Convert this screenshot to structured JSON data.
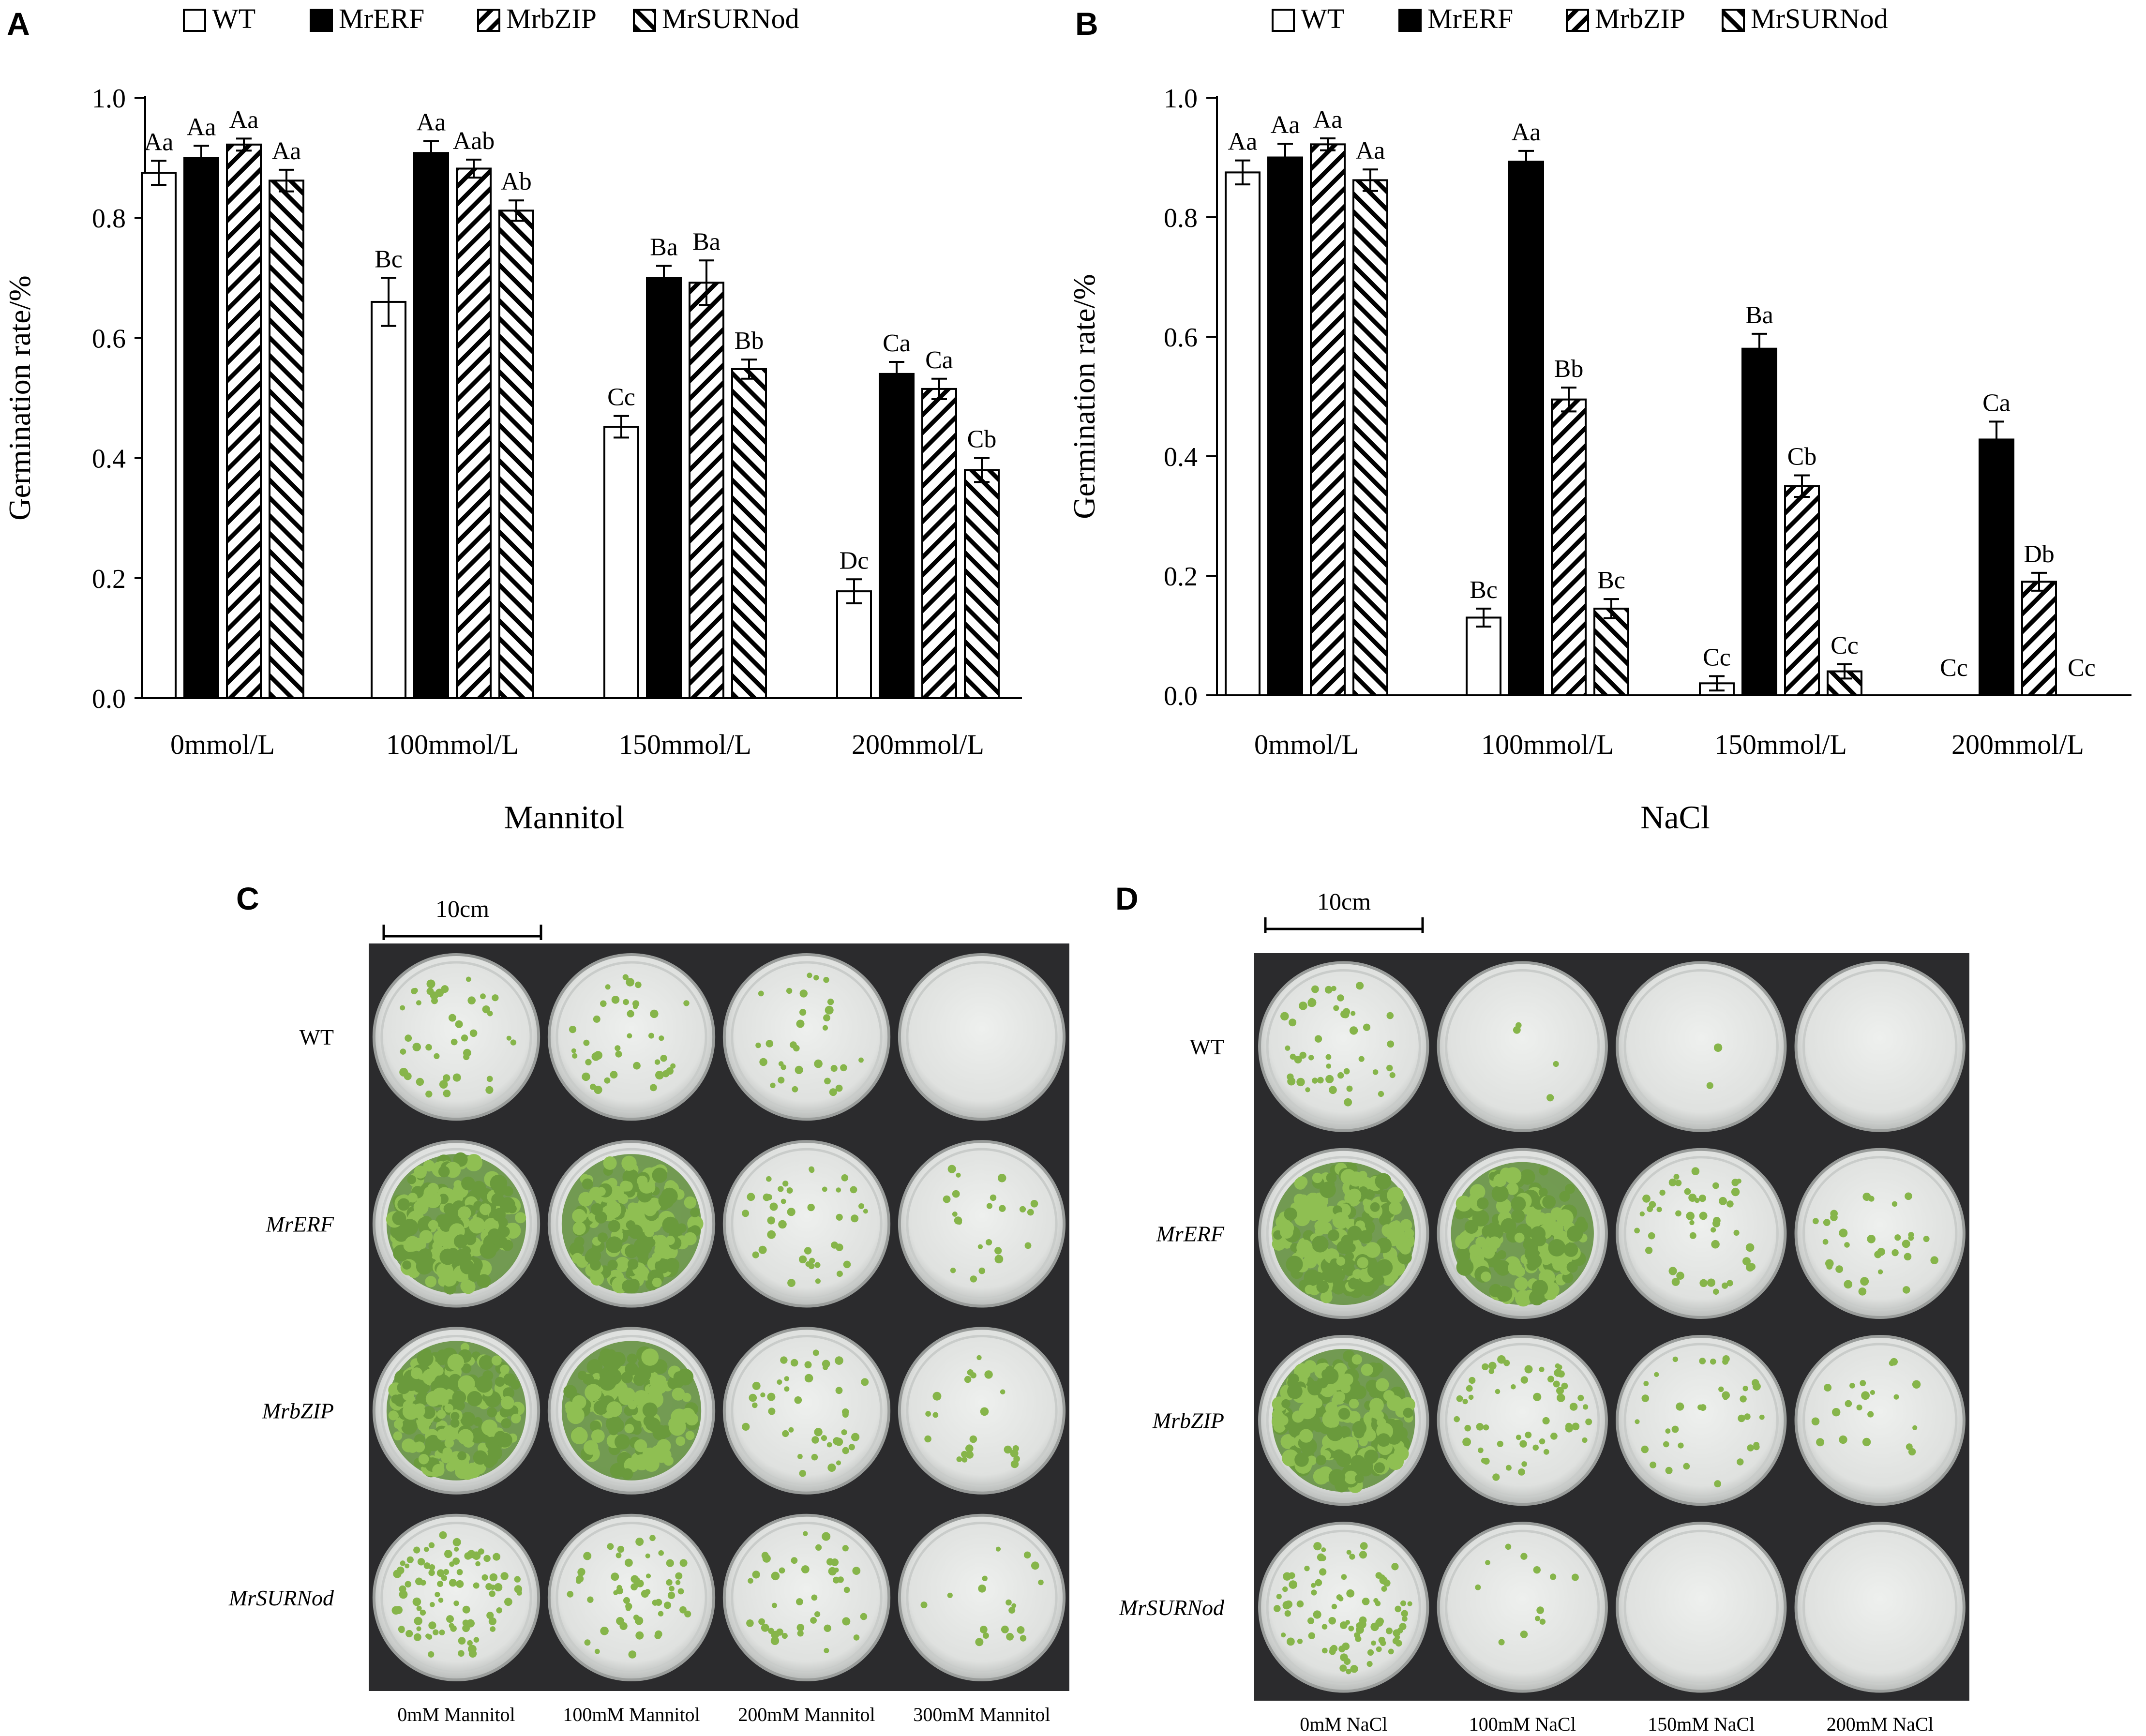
{
  "panels": {
    "A": "A",
    "B": "B",
    "C": "C",
    "D": "D"
  },
  "legend": [
    "WT",
    "MrERF",
    "MrbZIP",
    "MrSURNod"
  ],
  "colors": {
    "bar_edge": "#000000",
    "wt_fill": "#ffffff",
    "erf_fill": "#000000",
    "hatch": "#000000",
    "photo_bg": "#2b2b2d",
    "dish_fill": "#e6e7e5",
    "seedling_green": "#86b54a",
    "dense_green": "#5e8d38"
  },
  "chart_data": [
    {
      "type": "bar",
      "panel": "A",
      "title": "",
      "xlabel": "Mannitol",
      "ylabel": "Germination rate/%",
      "ylim": [
        0,
        1.0
      ],
      "yticks": [
        "0.0",
        "0.2",
        "0.4",
        "0.6",
        "0.8",
        "1.0"
      ],
      "categories": [
        "0mmol/L",
        "100mmol/L",
        "150mmol/L",
        "200mmol/L"
      ],
      "legend_position": "top",
      "grid": false,
      "series": [
        {
          "name": "WT",
          "values": [
            0.875,
            0.66,
            0.452,
            0.178
          ],
          "errors": [
            0.02,
            0.04,
            0.018,
            0.02
          ],
          "labels": [
            "Aa",
            "Bc",
            "Cc",
            "Dc"
          ]
        },
        {
          "name": "MrERF",
          "values": [
            0.9,
            0.908,
            0.7,
            0.54
          ],
          "errors": [
            0.02,
            0.02,
            0.02,
            0.02
          ],
          "labels": [
            "Aa",
            "Aa",
            "Ba",
            "Ca"
          ]
        },
        {
          "name": "MrbZIP",
          "values": [
            0.922,
            0.882,
            0.692,
            0.515
          ],
          "errors": [
            0.01,
            0.015,
            0.037,
            0.017
          ],
          "labels": [
            "Aa",
            "Aab",
            "Ba",
            "Ca"
          ]
        },
        {
          "name": "MrSURNod",
          "values": [
            0.862,
            0.812,
            0.548,
            0.38
          ],
          "errors": [
            0.018,
            0.017,
            0.016,
            0.02
          ],
          "labels": [
            "Aa",
            "Ab",
            "Bb",
            "Cb"
          ]
        }
      ]
    },
    {
      "type": "bar",
      "panel": "B",
      "title": "",
      "xlabel": "NaCl",
      "ylabel": "Germination rate/%",
      "ylim": [
        0,
        1.0
      ],
      "yticks": [
        "0.0",
        "0.2",
        "0.4",
        "0.6",
        "0.8",
        "1.0"
      ],
      "categories": [
        "0mmol/L",
        "100mmol/L",
        "150mmol/L",
        "200mmol/L"
      ],
      "legend_position": "top",
      "grid": false,
      "series": [
        {
          "name": "WT",
          "values": [
            0.875,
            0.13,
            0.02,
            0.0
          ],
          "errors": [
            0.02,
            0.015,
            0.012,
            0
          ],
          "labels": [
            "Aa",
            "Bc",
            "Cc",
            "Cc"
          ]
        },
        {
          "name": "MrERF",
          "values": [
            0.9,
            0.893,
            0.58,
            0.428
          ],
          "errors": [
            0.023,
            0.018,
            0.025,
            0.03
          ],
          "labels": [
            "Aa",
            "Aa",
            "Ba",
            "Ca"
          ]
        },
        {
          "name": "MrbZIP",
          "values": [
            0.922,
            0.495,
            0.35,
            0.19
          ],
          "errors": [
            0.01,
            0.02,
            0.018,
            0.015
          ],
          "labels": [
            "Aa",
            "Bb",
            "Cb",
            "Db"
          ]
        },
        {
          "name": "MrSURNod",
          "values": [
            0.862,
            0.145,
            0.04,
            0.0
          ],
          "errors": [
            0.018,
            0.016,
            0.012,
            0
          ],
          "labels": [
            "Aa",
            "Bc",
            "Cc",
            "Cc"
          ]
        }
      ]
    }
  ],
  "photo_C": {
    "scale_bar": "10cm",
    "row_labels": [
      "WT",
      "MrERF",
      "MrbZIP",
      "MrSURNod"
    ],
    "col_labels": [
      "0mM Mannitol",
      "100mM Mannitol",
      "200mM Mannitol",
      "300mM Mannitol"
    ],
    "density": [
      [
        40,
        38,
        30,
        0
      ],
      [
        200,
        170,
        40,
        22
      ],
      [
        200,
        150,
        40,
        22
      ],
      [
        90,
        55,
        40,
        18
      ]
    ]
  },
  "photo_D": {
    "scale_bar": "10cm",
    "row_labels": [
      "WT",
      "MrERF",
      "MrbZIP",
      "MrSURNod"
    ],
    "col_labels": [
      "0mM NaCl",
      "100mM NaCl",
      "150mM NaCl",
      "200mM NaCl"
    ],
    "density": [
      [
        45,
        4,
        2,
        0
      ],
      [
        200,
        160,
        45,
        30
      ],
      [
        200,
        55,
        35,
        20
      ],
      [
        90,
        12,
        0,
        0
      ]
    ]
  }
}
